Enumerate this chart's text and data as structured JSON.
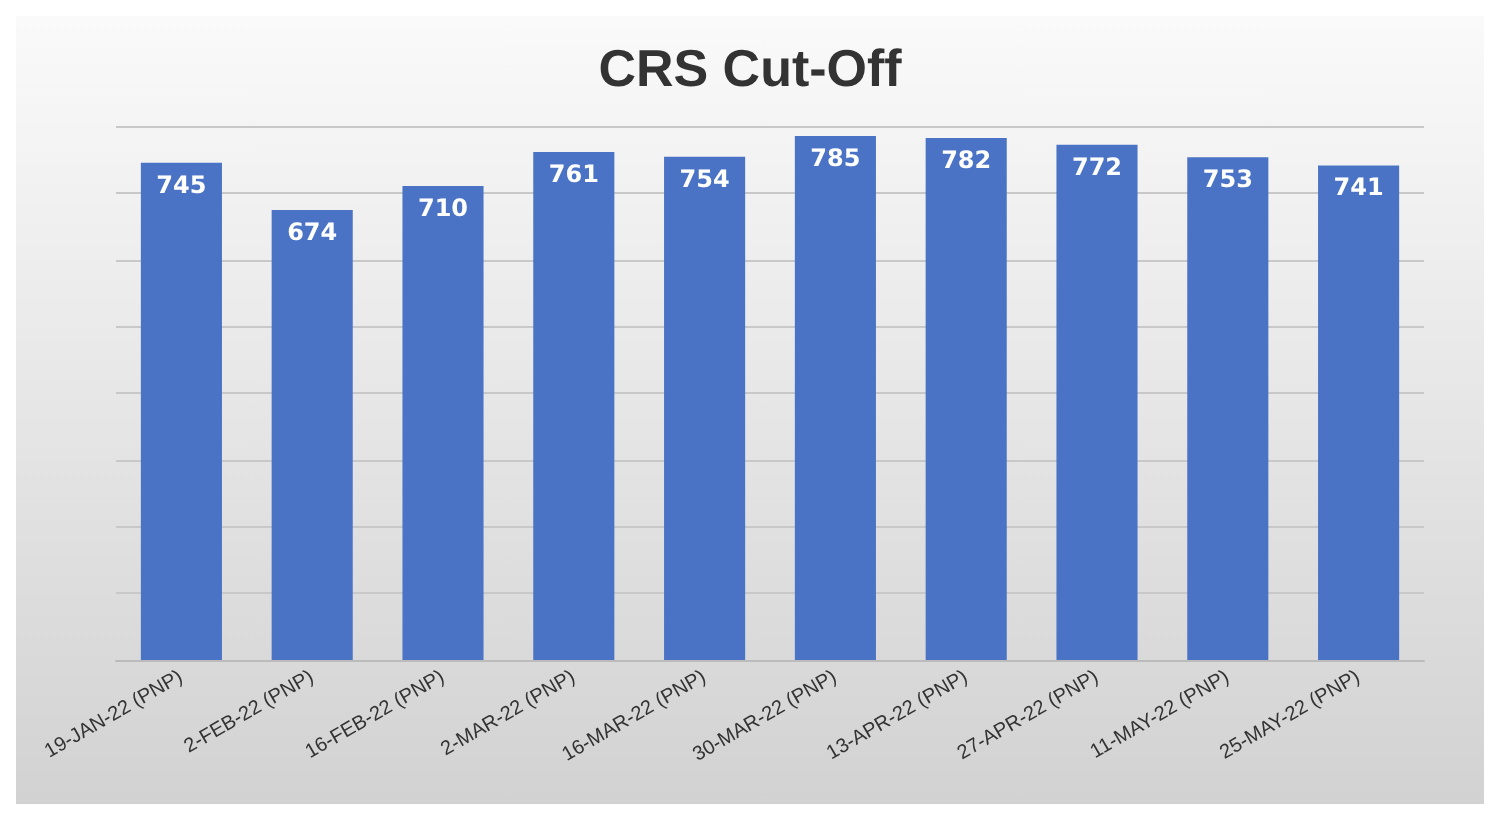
{
  "chart_data": {
    "type": "bar",
    "title": "CRS Cut-Off",
    "categories": [
      "19-JAN-22 (PNP)",
      "2-FEB-22 (PNP)",
      "16-FEB-22 (PNP)",
      "2-MAR-22 (PNP)",
      "16-MAR-22 (PNP)",
      "30-MAR-22 (PNP)",
      "13-APR-22 (PNP)",
      "27-APR-22 (PNP)",
      "11-MAY-22 (PNP)",
      "25-MAY-22 (PNP)"
    ],
    "values": [
      745,
      674,
      710,
      761,
      754,
      785,
      782,
      772,
      753,
      741
    ],
    "color": "#4a73c5",
    "ylim": [
      0,
      800
    ],
    "yticks": [
      {
        "value": 0,
        "label": null
      },
      {
        "value": 100,
        "label": null
      },
      {
        "value": 200,
        "label": null
      },
      {
        "value": 300,
        "label": null
      },
      {
        "value": 400,
        "label": null
      },
      {
        "value": 500,
        "label": null
      },
      {
        "value": 600,
        "label": null
      },
      {
        "value": 700,
        "label": null
      },
      {
        "value": 800,
        "label": null
      }
    ],
    "grid": "y",
    "data_labels": true,
    "tick_labels": "x"
  }
}
